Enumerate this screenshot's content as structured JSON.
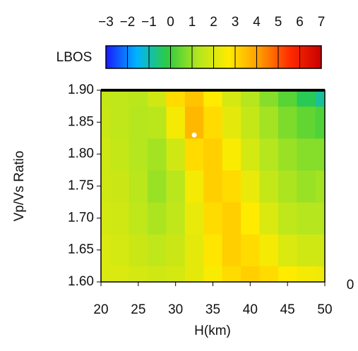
{
  "chart_data": {
    "type": "heatmap",
    "xlabel": "H(km)",
    "ylabel": "Vp/Vs Ratio",
    "colorbar_label": "LBOS",
    "x": [
      20,
      22.5,
      25,
      27.5,
      30,
      32.5,
      35,
      37.5,
      40,
      42.5,
      45,
      47.5,
      50
    ],
    "y": [
      1.6,
      1.65,
      1.7,
      1.75,
      1.8,
      1.85,
      1.9
    ],
    "values": [
      [
        2.0,
        2.0,
        1.9,
        1.8,
        1.9,
        2.2,
        2.6,
        3.0,
        3.2,
        3.0,
        2.7,
        2.5,
        2.4
      ],
      [
        2.0,
        1.9,
        1.7,
        1.5,
        1.7,
        2.2,
        2.8,
        3.2,
        3.0,
        2.5,
        2.0,
        1.8,
        1.8
      ],
      [
        1.9,
        1.8,
        1.5,
        1.2,
        1.5,
        2.3,
        3.0,
        3.2,
        2.7,
        2.0,
        1.5,
        1.3,
        1.3
      ],
      [
        1.8,
        1.7,
        1.4,
        1.0,
        1.4,
        2.5,
        3.2,
        3.0,
        2.3,
        1.6,
        1.2,
        1.0,
        1.1
      ],
      [
        1.8,
        1.6,
        1.3,
        1.1,
        1.8,
        3.0,
        3.2,
        2.6,
        1.9,
        1.3,
        1.0,
        0.8,
        0.8
      ],
      [
        1.7,
        1.5,
        1.3,
        1.4,
        2.5,
        3.6,
        3.0,
        2.2,
        1.6,
        1.1,
        0.7,
        0.4,
        0.2
      ],
      [
        1.6,
        1.5,
        1.4,
        1.8,
        3.0,
        3.4,
        2.7,
        1.9,
        1.3,
        0.8,
        0.3,
        -0.3,
        -0.8
      ]
    ],
    "xlim": [
      20,
      50
    ],
    "ylim": [
      1.6,
      1.9
    ],
    "xticks": [
      20,
      25,
      30,
      35,
      40,
      45,
      50
    ],
    "yticks": [
      {
        "value": 1.6,
        "label": "1.60"
      },
      1.65,
      {
        "value": 1.7,
        "label": "1.70"
      },
      1.75,
      {
        "value": 1.8,
        "label": "1.80"
      },
      1.85,
      {
        "value": 1.9,
        "label": "1.90"
      }
    ],
    "zlim": [
      -3,
      7
    ],
    "cticks": [
      {
        "value": -3,
        "label": "−3"
      },
      {
        "value": -2,
        "label": "−2"
      },
      {
        "value": -1,
        "label": "−1"
      },
      0,
      1,
      2,
      3,
      4,
      5,
      6,
      7
    ],
    "colorscale": [
      "#1a1aff",
      "#00b4ff",
      "#2ecc40",
      "#b4e61e",
      "#ffeb00",
      "#ff9900",
      "#ff2a00",
      "#c80000"
    ],
    "marker": {
      "x": 32.5,
      "y": 1.83,
      "color": "#ffffff"
    },
    "annotation": "0"
  }
}
